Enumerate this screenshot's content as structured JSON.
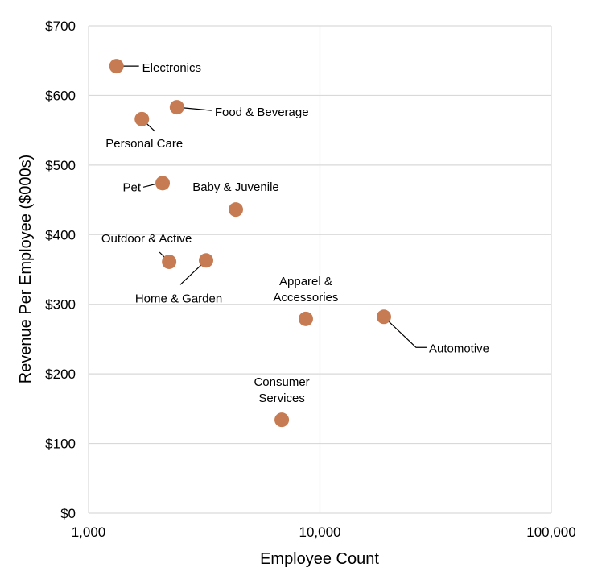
{
  "chart_data": {
    "type": "scatter",
    "title": "",
    "xlabel": "Employee Count",
    "ylabel": "Revenue Per Employee ($000s)",
    "xscale": "log",
    "xlim": [
      1000,
      100000
    ],
    "ylim": [
      0,
      700
    ],
    "grid": true,
    "legend": "none",
    "x_ticks": [
      {
        "value": 1000,
        "label": "1,000"
      },
      {
        "value": 10000,
        "label": "10,000"
      },
      {
        "value": 100000,
        "label": "100,000"
      }
    ],
    "y_ticks": [
      {
        "value": 0,
        "label": "$0"
      },
      {
        "value": 100,
        "label": "$100"
      },
      {
        "value": 200,
        "label": "$200"
      },
      {
        "value": 300,
        "label": "$300"
      },
      {
        "value": 400,
        "label": "$400"
      },
      {
        "value": 500,
        "label": "$500"
      },
      {
        "value": 600,
        "label": "$600"
      },
      {
        "value": 700,
        "label": "$700"
      }
    ],
    "marker_color": "#C67B52",
    "points": [
      {
        "label": "Electronics",
        "x": 1320,
        "y": 642
      },
      {
        "label": "Food & Beverage",
        "x": 2410,
        "y": 583
      },
      {
        "label": "Personal Care",
        "x": 1700,
        "y": 566
      },
      {
        "label": "Pet",
        "x": 2090,
        "y": 474
      },
      {
        "label": "Baby & Juvenile",
        "x": 4330,
        "y": 436
      },
      {
        "label": "Outdoor & Active",
        "x": 2230,
        "y": 361
      },
      {
        "label": "Home & Garden",
        "x": 3220,
        "y": 363
      },
      {
        "label": "Apparel & Accessories",
        "x": 8690,
        "y": 279
      },
      {
        "label": "Automotive",
        "x": 18900,
        "y": 282
      },
      {
        "label": "Consumer Services",
        "x": 6840,
        "y": 134
      }
    ]
  }
}
